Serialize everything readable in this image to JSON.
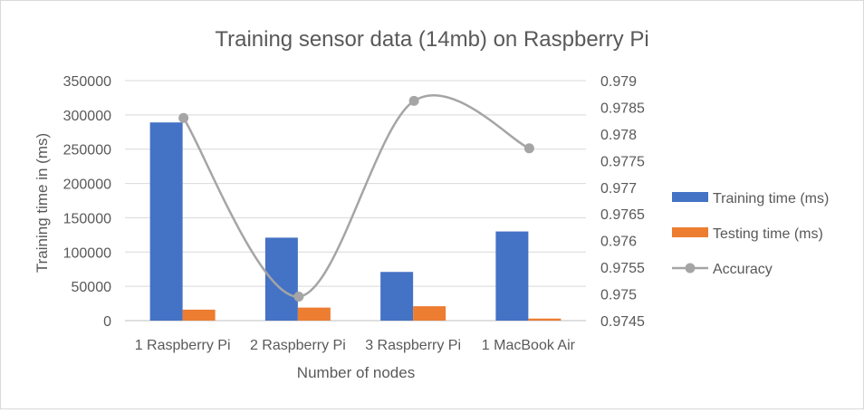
{
  "chart_data": {
    "type": "bar",
    "title": "Training sensor data (14mb) on Raspberry Pi",
    "xlabel": "Number of nodes",
    "ylabel": "Training time in (ms)",
    "y2label": "",
    "categories": [
      "1 Raspberry Pi",
      "2 Raspberry Pi",
      "3 Raspberry Pi",
      "1 MacBook Air"
    ],
    "ylim": [
      0,
      350000
    ],
    "yticks": [
      0,
      50000,
      100000,
      150000,
      200000,
      250000,
      300000,
      350000
    ],
    "ytick_labels": [
      "0",
      "50000",
      "100000",
      "150000",
      "200000",
      "250000",
      "300000",
      "350000"
    ],
    "y2lim": [
      0.9745,
      0.979
    ],
    "y2ticks": [
      0.9745,
      0.975,
      0.9755,
      0.976,
      0.9765,
      0.977,
      0.9775,
      0.978,
      0.9785,
      0.979
    ],
    "y2tick_labels": [
      "0.9745",
      "0.975",
      "0.9755",
      "0.976",
      "0.9765",
      "0.977",
      "0.9775",
      "0.978",
      "0.9785",
      "0.979"
    ],
    "grid": true,
    "legend_position": "right",
    "series": [
      {
        "name": "Training time (ms)",
        "kind": "bar",
        "axis": "left",
        "color": "#4472c4",
        "values": [
          289000,
          121000,
          71000,
          130000
        ]
      },
      {
        "name": "Testing time (ms)",
        "kind": "bar",
        "axis": "left",
        "color": "#ed7d31",
        "values": [
          16000,
          19000,
          21000,
          3000
        ]
      },
      {
        "name": "Accuracy",
        "kind": "line",
        "axis": "right",
        "color": "#a5a5a5",
        "smooth": true,
        "values": [
          0.9783,
          0.97495,
          0.97862,
          0.97773
        ]
      }
    ]
  }
}
